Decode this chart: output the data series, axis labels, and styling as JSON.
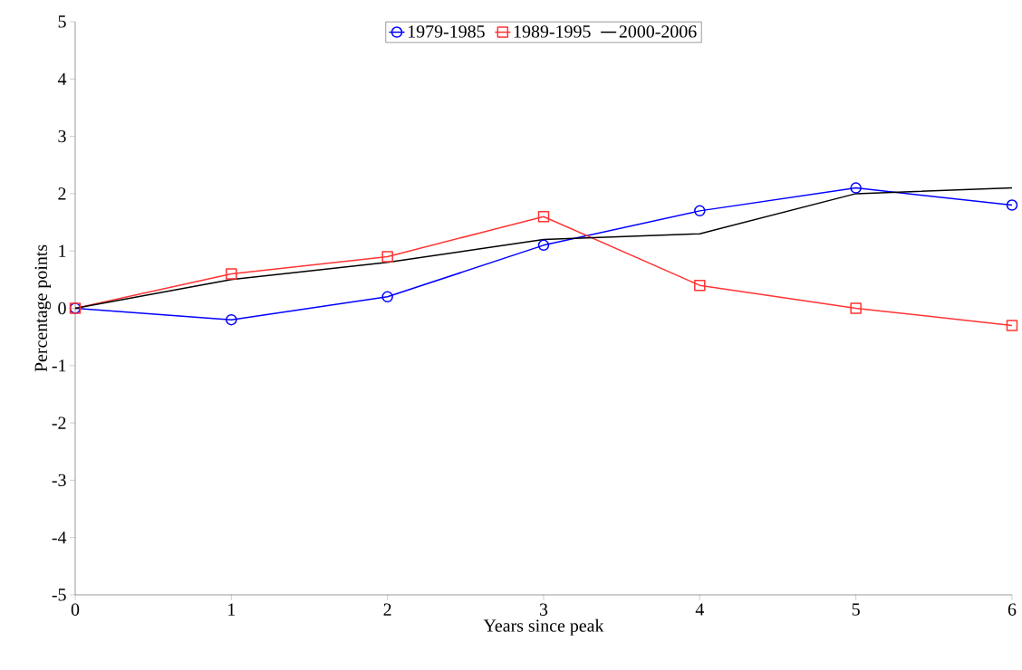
{
  "chart_data": {
    "type": "line",
    "xlabel": "Years since peak",
    "ylabel": "Percentage points",
    "x": [
      0,
      1,
      2,
      3,
      4,
      5,
      6
    ],
    "series": [
      {
        "name": "1979-1985",
        "color": "#0000ff",
        "marker": "circle",
        "values": [
          0,
          -0.2,
          0.2,
          1.1,
          1.7,
          2.1,
          1.8
        ]
      },
      {
        "name": "1989-1995",
        "color": "#ff3333",
        "marker": "square",
        "values": [
          0,
          0.6,
          0.9,
          1.6,
          0.4,
          0,
          -0.3
        ]
      },
      {
        "name": "2000-2006",
        "color": "#000000",
        "marker": "none",
        "values": [
          0,
          0.5,
          0.8,
          1.2,
          1.3,
          2.0,
          2.1
        ]
      }
    ],
    "xlim": [
      0,
      6
    ],
    "ylim": [
      -5,
      5
    ],
    "xticks": [
      0,
      1,
      2,
      3,
      4,
      5,
      6
    ],
    "yticks": [
      -5,
      -4,
      -3,
      -2,
      -1,
      0,
      1,
      2,
      3,
      4,
      5
    ],
    "grid": false,
    "legend": "top",
    "line_style": "solid"
  }
}
